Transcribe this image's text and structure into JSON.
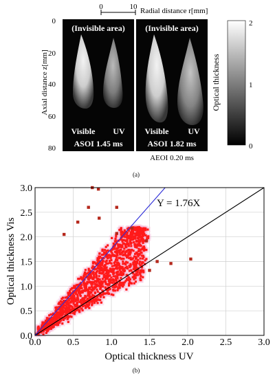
{
  "panel_a": {
    "scale_bar": {
      "tick_start": "0",
      "tick_end": "10",
      "label": "Radial distance r[mm]"
    },
    "y_axis": {
      "label": "Axial distance z[mm]",
      "ticks": [
        "0",
        "20",
        "40",
        "60",
        "80"
      ]
    },
    "images": [
      {
        "top_label": "(Invisible area)",
        "left_label": "Visible",
        "right_label": "UV",
        "time_label": "ASOI 1.45 ms"
      },
      {
        "top_label": "(Invisible area)",
        "left_label": "Visible",
        "right_label": "UV",
        "time_label": "ASOI 1.82 ms"
      }
    ],
    "aeoi_label": "AEOI 0.20 ms",
    "colorbar": {
      "label": "Optical thickness",
      "ticks": [
        "2",
        "1",
        "0"
      ],
      "range": [
        0,
        2
      ]
    },
    "caption": "(a)"
  },
  "panel_b": {
    "caption": "(b)",
    "colors": {
      "scatter_fill": "#ff1a1a",
      "scatter_marker": "#b5281c",
      "halo": "#f5b8d8",
      "fit_line": "#2a2ad8",
      "unity_line": "#000000"
    }
  },
  "chart_data": {
    "type": "scatter",
    "xlabel": "Optical thickness UV",
    "ylabel": "Optical thickness Vis",
    "xlim": [
      0,
      3
    ],
    "ylim": [
      0,
      3
    ],
    "x_ticks": [
      "0.0",
      "0.5",
      "1.0",
      "1.5",
      "2.0",
      "2.5",
      "3.0"
    ],
    "y_ticks": [
      "0.0",
      "0.5",
      "1.0",
      "1.5",
      "2.0",
      "2.5",
      "3.0"
    ],
    "grid": true,
    "fit_line": {
      "label": "Y = 1.76X",
      "slope": 1.76
    },
    "reference_line": {
      "slope": 1.0
    },
    "outliers": [
      {
        "x": 0.75,
        "y": 3.0
      },
      {
        "x": 0.83,
        "y": 2.97
      },
      {
        "x": 1.07,
        "y": 2.6
      },
      {
        "x": 0.7,
        "y": 2.6
      },
      {
        "x": 0.84,
        "y": 2.38
      },
      {
        "x": 1.27,
        "y": 2.18
      },
      {
        "x": 1.07,
        "y": 2.07
      },
      {
        "x": 1.78,
        "y": 1.46
      },
      {
        "x": 2.04,
        "y": 1.55
      },
      {
        "x": 1.5,
        "y": 1.32
      },
      {
        "x": 0.56,
        "y": 2.3
      },
      {
        "x": 1.46,
        "y": 1.92
      },
      {
        "x": 1.6,
        "y": 1.5
      },
      {
        "x": 0.38,
        "y": 2.05
      }
    ]
  }
}
